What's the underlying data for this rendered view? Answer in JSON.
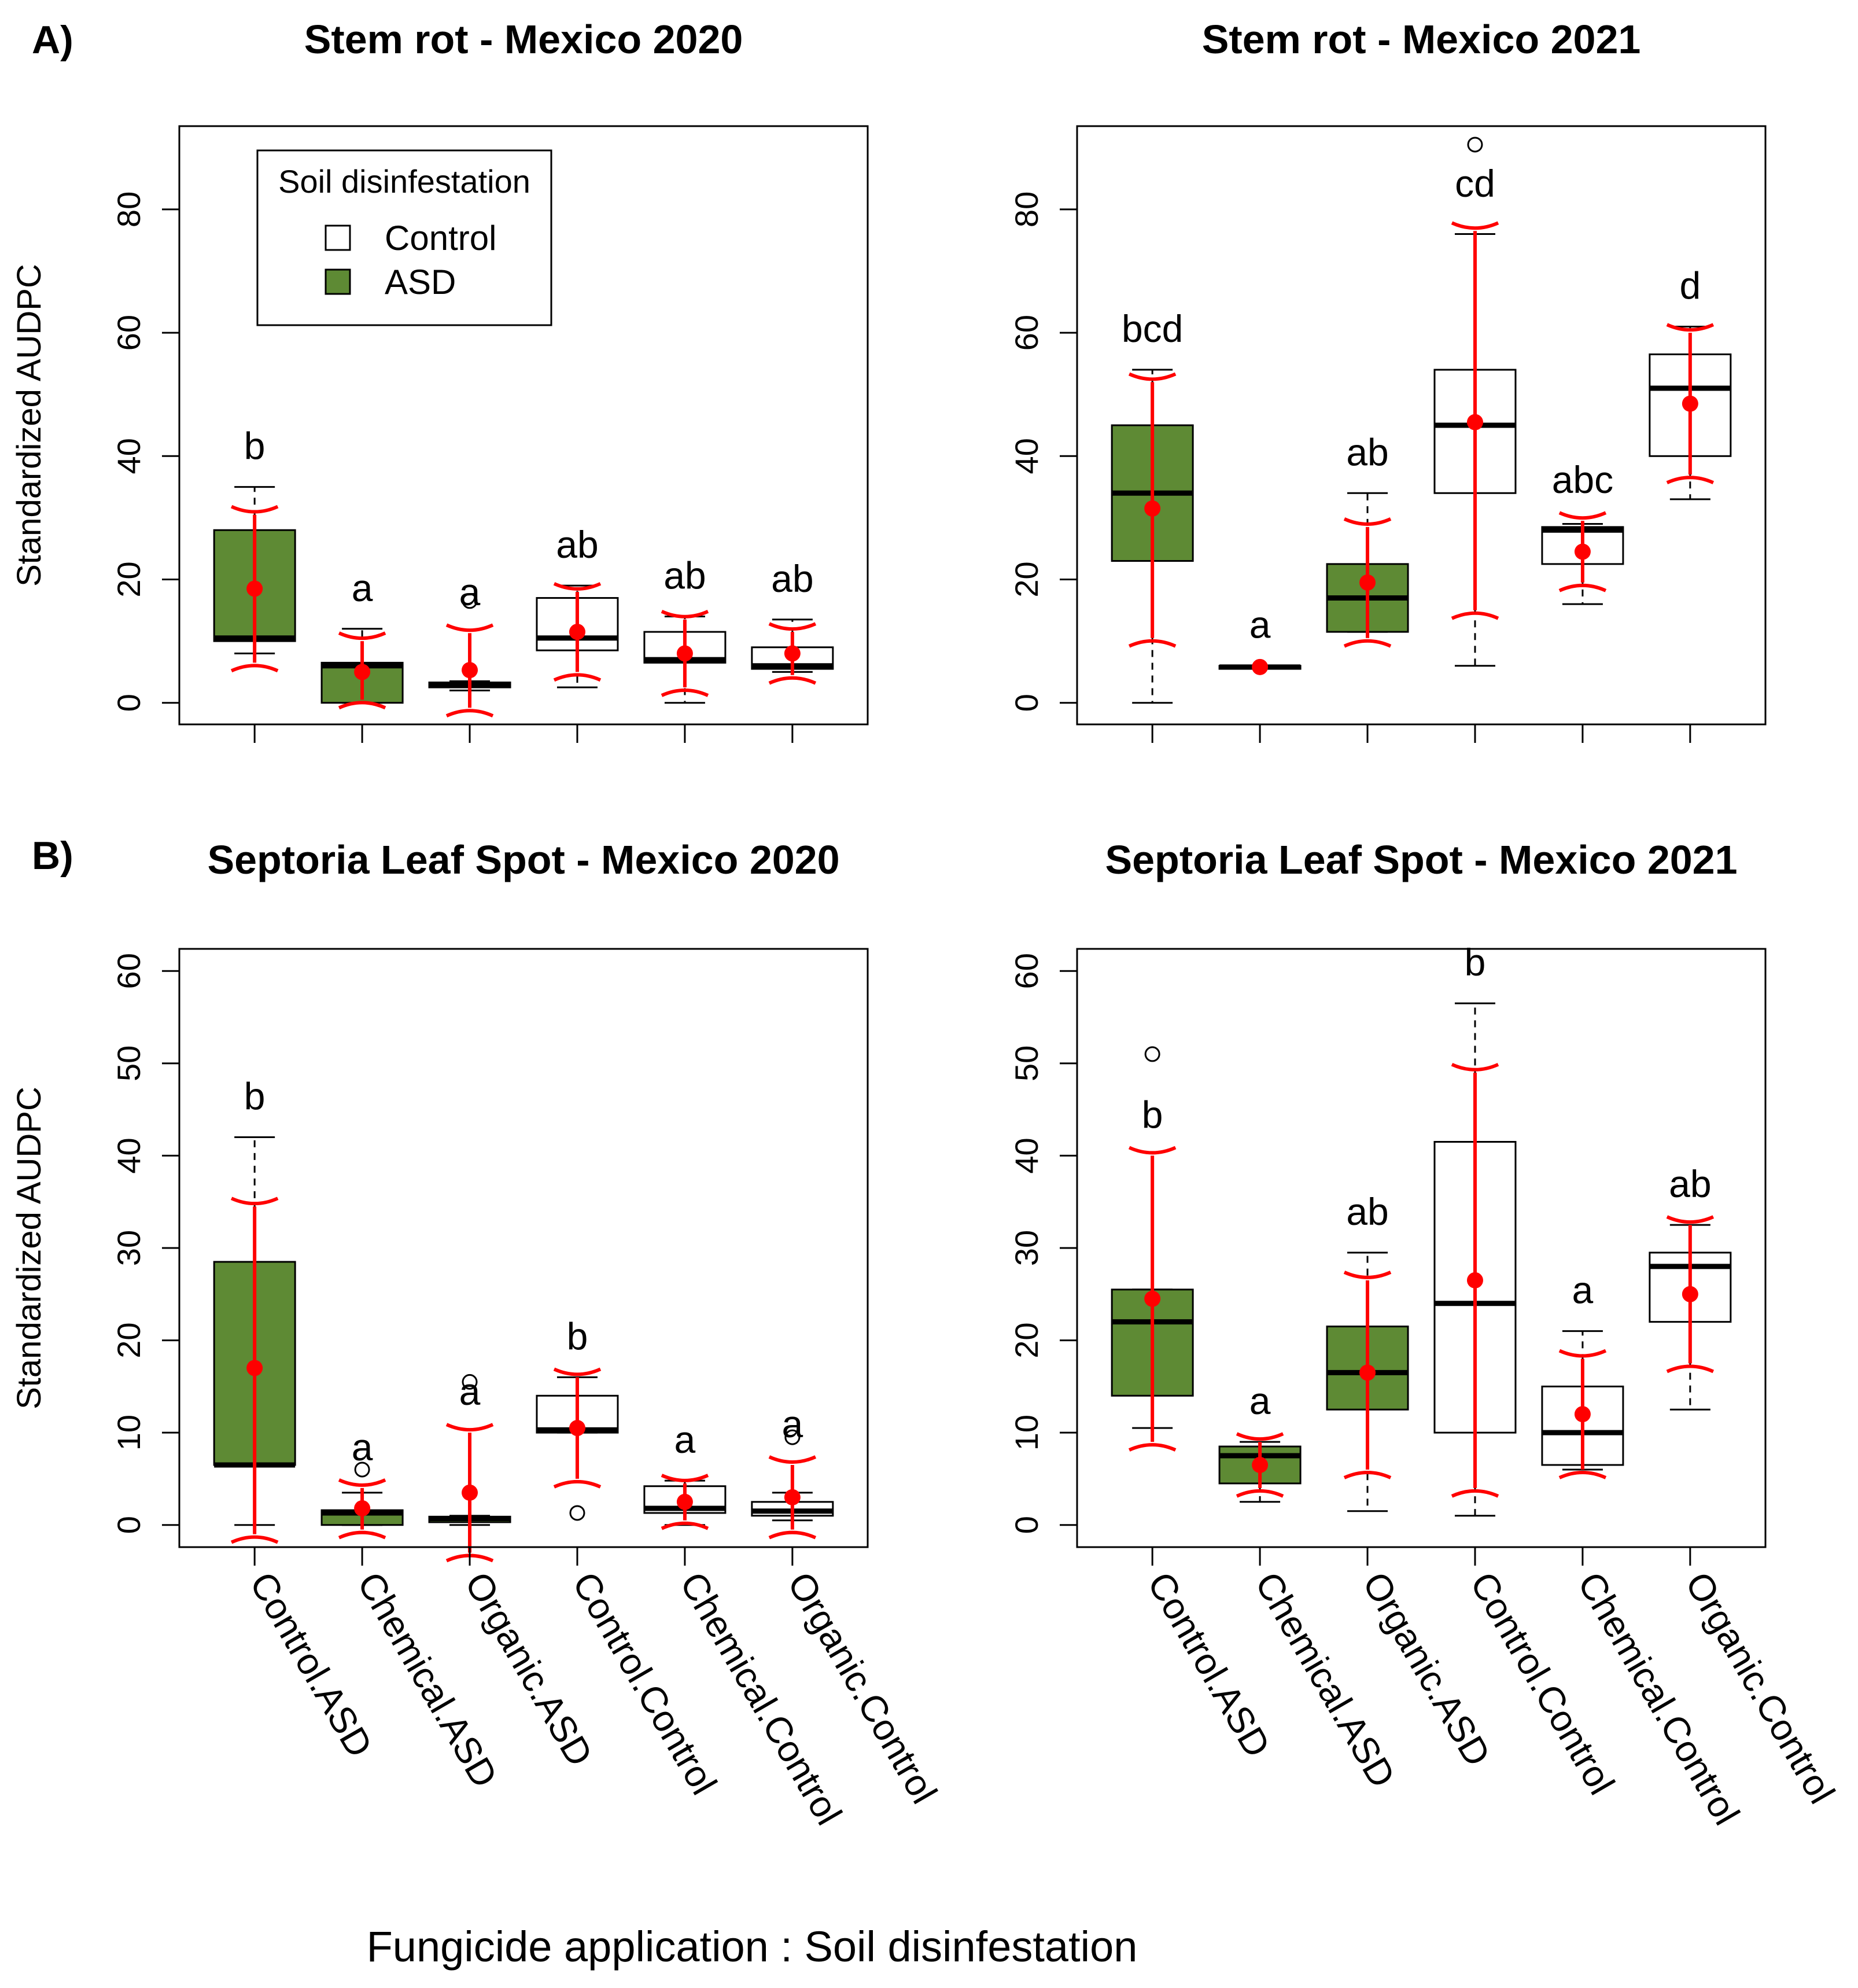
{
  "figure": {
    "panel_labels": [
      "A)",
      "B)"
    ],
    "xlabel": "Fungicide application : Soil disinfestation",
    "ylabel": "Standardized AUDPC",
    "legend": {
      "title": "Soil disinfestation",
      "entries": [
        {
          "label": "Control",
          "color": "#ffffff"
        },
        {
          "label": "ASD",
          "color": "#5e8a34"
        }
      ]
    },
    "colors": {
      "asd": "#5e8a34",
      "control": "#ffffff",
      "mean": "#ff0000"
    }
  },
  "chart_data": [
    {
      "type": "box",
      "title": "Stem rot - Mexico 2020",
      "ylabel": "Standardized AUDPC",
      "ylim": [
        -3.5,
        93.5
      ],
      "yticks": [
        0,
        20,
        40,
        60,
        80
      ],
      "categories": [
        "Control.ASD",
        "Chemical.ASD",
        "Organic.ASD",
        "Control.Control",
        "Chemical.Control",
        "Organic.Control"
      ],
      "groups": [
        "ASD",
        "ASD",
        "ASD",
        "Control",
        "Control",
        "Control"
      ],
      "letters": [
        "b",
        "a",
        "a",
        "ab",
        "ab",
        "ab"
      ],
      "boxes": [
        {
          "whisker_low": 8,
          "q1": 10,
          "median": 10.5,
          "q3": 28,
          "whisker_high": 35,
          "outliers": [],
          "mean": 18.5,
          "ci_low": 6.5,
          "ci_high": 30.5
        },
        {
          "whisker_low": 0,
          "q1": 0,
          "median": 6,
          "q3": 6.5,
          "whisker_high": 12,
          "outliers": [],
          "mean": 5,
          "ci_low": 0.5,
          "ci_high": 10
        },
        {
          "whisker_low": 2,
          "q1": 2.5,
          "median": 3,
          "q3": 3.3,
          "whisker_high": 3.5,
          "outliers": [
            16.5
          ],
          "mean": 5.3,
          "ci_low": -0.8,
          "ci_high": 11.3
        },
        {
          "whisker_low": 2.5,
          "q1": 8.5,
          "median": 10.5,
          "q3": 17,
          "whisker_high": 19,
          "outliers": [],
          "mean": 11.5,
          "ci_low": 5,
          "ci_high": 18
        },
        {
          "whisker_low": 0,
          "q1": 6.5,
          "median": 7,
          "q3": 11.5,
          "whisker_high": 14,
          "outliers": [],
          "mean": 8,
          "ci_low": 2.5,
          "ci_high": 13.5
        },
        {
          "whisker_low": 5,
          "q1": 5.5,
          "median": 6,
          "q3": 9,
          "whisker_high": 13.5,
          "outliers": [],
          "mean": 8,
          "ci_low": 4.5,
          "ci_high": 11.5
        }
      ]
    },
    {
      "type": "box",
      "title": "Stem rot - Mexico 2021",
      "ylabel": "",
      "ylim": [
        -3.5,
        93.5
      ],
      "yticks": [
        0,
        20,
        40,
        60,
        80
      ],
      "categories": [
        "Control.ASD",
        "Chemical.ASD",
        "Organic.ASD",
        "Control.Control",
        "Chemical.Control",
        "Organic.Control"
      ],
      "groups": [
        "ASD",
        "ASD",
        "ASD",
        "Control",
        "Control",
        "Control"
      ],
      "letters": [
        "bcd",
        "a",
        "ab",
        "cd",
        "abc",
        "d"
      ],
      "boxes": [
        {
          "whisker_low": 0,
          "q1": 23,
          "median": 34,
          "q3": 45,
          "whisker_high": 54,
          "outliers": [],
          "mean": 31.5,
          "ci_low": 10.5,
          "ci_high": 52
        },
        {
          "whisker_low": 5.5,
          "q1": 5.5,
          "median": 5.8,
          "q3": 6,
          "whisker_high": 6,
          "outliers": [],
          "mean": 5.8,
          "ci_low": 5.8,
          "ci_high": 5.8
        },
        {
          "whisker_low": 11.5,
          "q1": 11.5,
          "median": 17,
          "q3": 22.5,
          "whisker_high": 34,
          "outliers": [],
          "mean": 19.5,
          "ci_low": 10.5,
          "ci_high": 28.5
        },
        {
          "whisker_low": 6,
          "q1": 34,
          "median": 45,
          "q3": 54,
          "whisker_high": 76,
          "outliers": [
            90.5
          ],
          "mean": 45.5,
          "ci_low": 15,
          "ci_high": 76.5
        },
        {
          "whisker_low": 16,
          "q1": 22.5,
          "median": 28,
          "q3": 28.5,
          "whisker_high": 29,
          "outliers": [],
          "mean": 24.5,
          "ci_low": 19.5,
          "ci_high": 29.5
        },
        {
          "whisker_low": 33,
          "q1": 40,
          "median": 51,
          "q3": 56.5,
          "whisker_high": 61,
          "outliers": [],
          "mean": 48.5,
          "ci_low": 37,
          "ci_high": 60
        }
      ]
    },
    {
      "type": "box",
      "title": "Septoria Leaf Spot - Mexico 2020",
      "ylabel": "Standardized AUDPC",
      "ylim": [
        -2.4,
        62.4
      ],
      "yticks": [
        0,
        10,
        20,
        30,
        40,
        50,
        60
      ],
      "categories": [
        "Control.ASD",
        "Chemical.ASD",
        "Organic.ASD",
        "Control.Control",
        "Chemical.Control",
        "Organic.Control"
      ],
      "groups": [
        "ASD",
        "ASD",
        "ASD",
        "Control",
        "Control",
        "Control"
      ],
      "letters": [
        "b",
        "a",
        "a",
        "b",
        "a",
        "a"
      ],
      "boxes": [
        {
          "whisker_low": 0,
          "q1": 6.5,
          "median": 6.5,
          "q3": 28.5,
          "whisker_high": 42,
          "outliers": [],
          "mean": 17,
          "ci_low": -1,
          "ci_high": 34.5
        },
        {
          "whisker_low": 0,
          "q1": 0,
          "median": 1.3,
          "q3": 1.6,
          "whisker_high": 3.5,
          "outliers": [
            6
          ],
          "mean": 1.8,
          "ci_low": -0.5,
          "ci_high": 4
        },
        {
          "whisker_low": 0,
          "q1": 0.3,
          "median": 0.7,
          "q3": 0.9,
          "whisker_high": 1,
          "outliers": [
            15.5
          ],
          "mean": 3.5,
          "ci_low": -3,
          "ci_high": 10
        },
        {
          "whisker_low": 10,
          "q1": 10,
          "median": 10.3,
          "q3": 14,
          "whisker_high": 16,
          "outliers": [
            1.3
          ],
          "mean": 10.5,
          "ci_low": 5,
          "ci_high": 16
        },
        {
          "whisker_low": 0,
          "q1": 1.3,
          "median": 1.8,
          "q3": 4.2,
          "whisker_high": 4.8,
          "outliers": [],
          "mean": 2.5,
          "ci_low": 0.5,
          "ci_high": 4.5
        },
        {
          "whisker_low": 0.5,
          "q1": 1,
          "median": 1.5,
          "q3": 2.5,
          "whisker_high": 3.5,
          "outliers": [
            9.5
          ],
          "mean": 3,
          "ci_low": -0.5,
          "ci_high": 6.5
        }
      ]
    },
    {
      "type": "box",
      "title": "Septoria Leaf Spot - Mexico 2021",
      "ylabel": "",
      "ylim": [
        -2.4,
        62.4
      ],
      "yticks": [
        0,
        10,
        20,
        30,
        40,
        50,
        60
      ],
      "categories": [
        "Control.ASD",
        "Chemical.ASD",
        "Organic.ASD",
        "Control.Control",
        "Chemical.Control",
        "Organic.Control"
      ],
      "groups": [
        "ASD",
        "ASD",
        "ASD",
        "Control",
        "Control",
        "Control"
      ],
      "letters": [
        "b",
        "a",
        "ab",
        "b",
        "a",
        "ab"
      ],
      "boxes": [
        {
          "whisker_low": 10.5,
          "q1": 14,
          "median": 22,
          "q3": 25.5,
          "whisker_high": 25.5,
          "outliers": [
            51
          ],
          "mean": 24.5,
          "ci_low": 9,
          "ci_high": 40
        },
        {
          "whisker_low": 2.5,
          "q1": 4.5,
          "median": 7.5,
          "q3": 8.5,
          "whisker_high": 9,
          "outliers": [],
          "mean": 6.5,
          "ci_low": 4,
          "ci_high": 9
        },
        {
          "whisker_low": 1.5,
          "q1": 12.5,
          "median": 16.5,
          "q3": 21.5,
          "whisker_high": 29.5,
          "outliers": [],
          "mean": 16.5,
          "ci_low": 6,
          "ci_high": 26.5
        },
        {
          "whisker_low": 1,
          "q1": 10,
          "median": 24,
          "q3": 41.5,
          "whisker_high": 56.5,
          "outliers": [],
          "mean": 26.5,
          "ci_low": 4,
          "ci_high": 49
        },
        {
          "whisker_low": 6,
          "q1": 6.5,
          "median": 10,
          "q3": 15,
          "whisker_high": 21,
          "outliers": [],
          "mean": 12,
          "ci_low": 6,
          "ci_high": 18
        },
        {
          "whisker_low": 12.5,
          "q1": 22,
          "median": 28,
          "q3": 29.5,
          "whisker_high": 32.5,
          "outliers": [],
          "mean": 25,
          "ci_low": 17.5,
          "ci_high": 32.5
        }
      ]
    }
  ]
}
